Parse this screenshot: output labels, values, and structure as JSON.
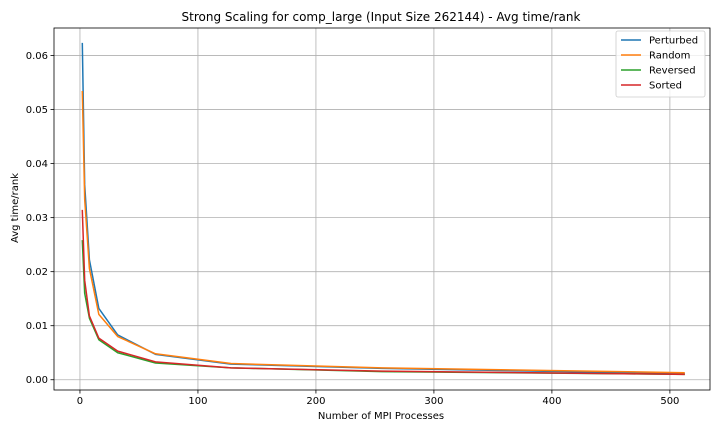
{
  "chart_data": {
    "type": "line",
    "title": "Strong Scaling for comp_large (Input Size 262144) - Avg time/rank",
    "xlabel": "Number of MPI Processes",
    "ylabel": "Avg time/rank",
    "xlim": [
      -22,
      534
    ],
    "ylim": [
      -0.0019,
      0.0651
    ],
    "xticks": [
      0,
      100,
      200,
      300,
      400,
      500
    ],
    "yticks": [
      0.0,
      0.01,
      0.02,
      0.03,
      0.04,
      0.05,
      0.06
    ],
    "xtick_labels": [
      "0",
      "100",
      "200",
      "300",
      "400",
      "500"
    ],
    "ytick_labels": [
      "0.00",
      "0.01",
      "0.02",
      "0.03",
      "0.04",
      "0.05",
      "0.06"
    ],
    "grid": true,
    "legend_position": "top-right",
    "x": [
      2,
      4,
      8,
      16,
      32,
      64,
      128,
      256,
      512
    ],
    "series": [
      {
        "name": "Perturbed",
        "color": "#1f77b4",
        "values": [
          0.0622,
          0.0361,
          0.0222,
          0.0132,
          0.0083,
          0.0047,
          0.0029,
          0.0021,
          0.0011
        ]
      },
      {
        "name": "Random",
        "color": "#ff7f0e",
        "values": [
          0.0533,
          0.0334,
          0.0206,
          0.0121,
          0.008,
          0.0048,
          0.003,
          0.0022,
          0.0013
        ]
      },
      {
        "name": "Reversed",
        "color": "#2ca02c",
        "values": [
          0.0257,
          0.016,
          0.0114,
          0.0074,
          0.005,
          0.0031,
          0.0022,
          0.0015,
          0.001
        ]
      },
      {
        "name": "Sorted",
        "color": "#d62728",
        "values": [
          0.0313,
          0.0184,
          0.0118,
          0.0077,
          0.0053,
          0.0033,
          0.0022,
          0.0016,
          0.001
        ]
      }
    ]
  }
}
